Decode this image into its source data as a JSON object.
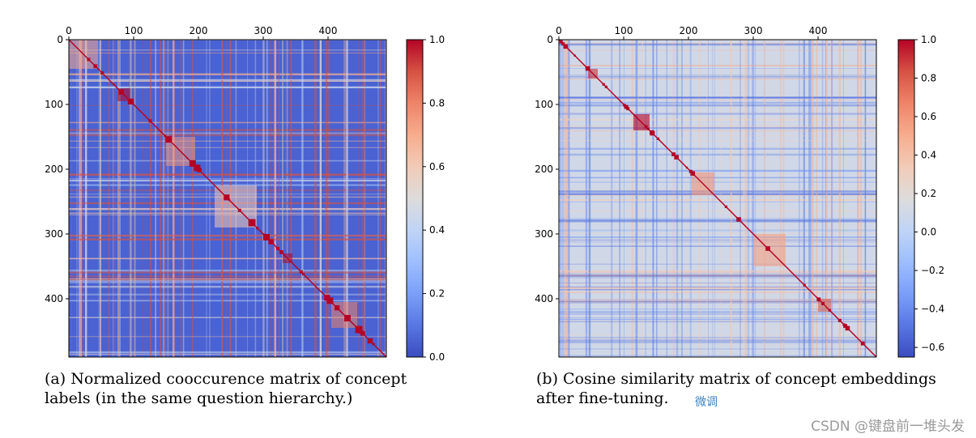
{
  "figure": {
    "panel_a": {
      "caption": "(a) Normalized cooccurence matrix of concept labels (in the same question hierarchy.)",
      "cmap": [
        "#3b4cc0",
        "#5977e3",
        "#7b9ff9",
        "#9ebeff",
        "#c0d4f5",
        "#dddcdc",
        "#f2cbb7",
        "#f7ac8e",
        "#ee8468",
        "#d65244",
        "#b40426"
      ]
    },
    "panel_b": {
      "caption": "(b) Cosine similarity matrix of concept embeddings after fine-tuning.",
      "subref": "微调"
    },
    "watermark": "CSDN @键盘前一堆头发"
  },
  "chart_data": [
    {
      "type": "heatmap",
      "title": "",
      "xlabel": "",
      "ylabel": "",
      "matrix_size": 490,
      "x_ticks": [
        "0",
        "100",
        "200",
        "300",
        "400"
      ],
      "y_ticks": [
        "0",
        "100",
        "200",
        "300",
        "400"
      ],
      "xlim": [
        0,
        490
      ],
      "ylim": [
        0,
        490
      ],
      "x_axis_position": "top",
      "colorbar": {
        "min": 0.0,
        "max": 1.0,
        "ticks": [
          "0.0",
          "0.2",
          "0.4",
          "0.6",
          "0.8",
          "1.0"
        ]
      },
      "diagonal_value": 1.0,
      "background_value": 0.05,
      "dense_blocks": [
        {
          "start": 0,
          "end": 45,
          "value": 0.7
        },
        {
          "start": 75,
          "end": 95,
          "value": 1.0
        },
        {
          "start": 150,
          "end": 195,
          "value": 0.75
        },
        {
          "start": 225,
          "end": 290,
          "value": 0.6
        },
        {
          "start": 330,
          "end": 345,
          "value": 1.0
        },
        {
          "start": 405,
          "end": 445,
          "value": 0.8
        }
      ]
    },
    {
      "type": "heatmap",
      "title": "",
      "xlabel": "",
      "ylabel": "",
      "matrix_size": 490,
      "x_ticks": [
        "0",
        "100",
        "200",
        "300",
        "400"
      ],
      "y_ticks": [
        "0",
        "100",
        "200",
        "300",
        "400"
      ],
      "xlim": [
        0,
        490
      ],
      "ylim": [
        0,
        490
      ],
      "x_axis_position": "top",
      "colorbar": {
        "min": -0.65,
        "max": 1.0,
        "ticks": [
          "−0.6",
          "−0.4",
          "−0.2",
          "0.0",
          "0.2",
          "0.4",
          "0.6",
          "0.8",
          "1.0"
        ]
      },
      "diagonal_value": 1.0,
      "background_value": 0.1,
      "dense_blocks": [
        {
          "start": 45,
          "end": 60,
          "value": 0.9
        },
        {
          "start": 115,
          "end": 140,
          "value": 1.0
        },
        {
          "start": 205,
          "end": 240,
          "value": 0.6
        },
        {
          "start": 300,
          "end": 350,
          "value": 0.55
        },
        {
          "start": 400,
          "end": 420,
          "value": 0.8
        }
      ]
    }
  ]
}
